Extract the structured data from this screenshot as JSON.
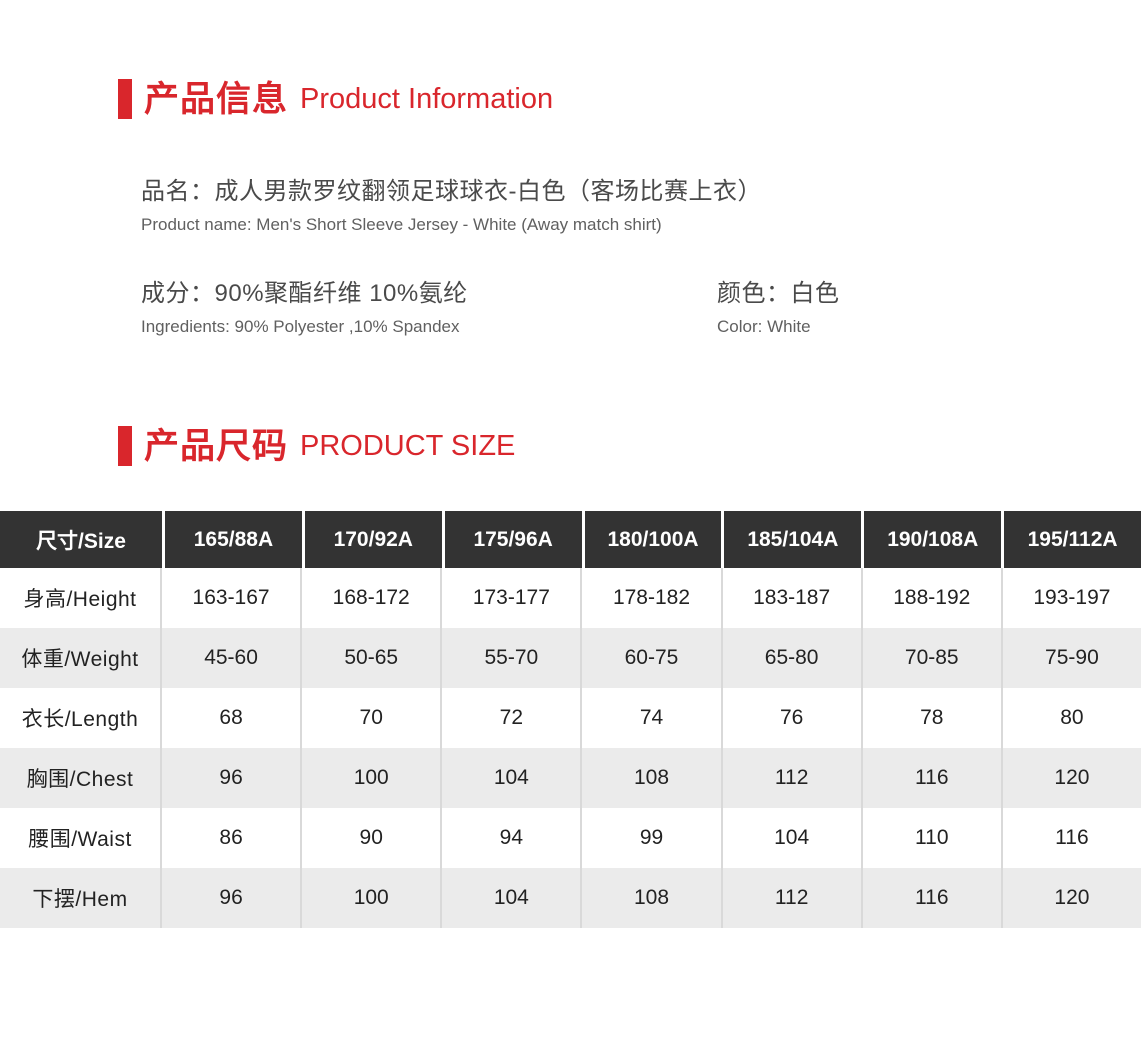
{
  "colors": {
    "accent_red": "#d9262c",
    "table_header_bg": "#333333",
    "table_header_text": "#ffffff",
    "table_alt_row_bg": "#ebebeb",
    "table_divider": "#d9d9d9",
    "body_text": "#4a4a4a"
  },
  "section_product_info": {
    "title_cn": "产品信息",
    "title_en": "Product Information"
  },
  "product": {
    "name_cn": "品名：成人男款罗纹翻领足球球衣-白色（客场比赛上衣）",
    "name_en": "Product name: Men's Short Sleeve Jersey - White (Away match shirt)",
    "ingredients_cn": "成分：90%聚酯纤维 10%氨纶",
    "ingredients_en": "Ingredients: 90% Polyester ,10% Spandex",
    "color_cn": "颜色：白色",
    "color_en": "Color: White"
  },
  "section_size": {
    "title_cn": "产品尺码",
    "title_en": "PRODUCT SIZE"
  },
  "size_table": {
    "header": [
      "尺寸/Size",
      "165/88A",
      "170/92A",
      "175/96A",
      "180/100A",
      "185/104A",
      "190/108A",
      "195/112A"
    ],
    "rows": [
      {
        "label": "身高/Height",
        "values": [
          "163-167",
          "168-172",
          "173-177",
          "178-182",
          "183-187",
          "188-192",
          "193-197"
        ]
      },
      {
        "label": "体重/Weight",
        "values": [
          "45-60",
          "50-65",
          "55-70",
          "60-75",
          "65-80",
          "70-85",
          "75-90"
        ]
      },
      {
        "label": "衣长/Length",
        "values": [
          "68",
          "70",
          "72",
          "74",
          "76",
          "78",
          "80"
        ]
      },
      {
        "label": "胸围/Chest",
        "values": [
          "96",
          "100",
          "104",
          "108",
          "112",
          "116",
          "120"
        ]
      },
      {
        "label": "腰围/Waist",
        "values": [
          "86",
          "90",
          "94",
          "99",
          "104",
          "110",
          "116"
        ]
      },
      {
        "label": "下摆/Hem",
        "values": [
          "96",
          "100",
          "104",
          "108",
          "112",
          "116",
          "120"
        ]
      }
    ]
  }
}
